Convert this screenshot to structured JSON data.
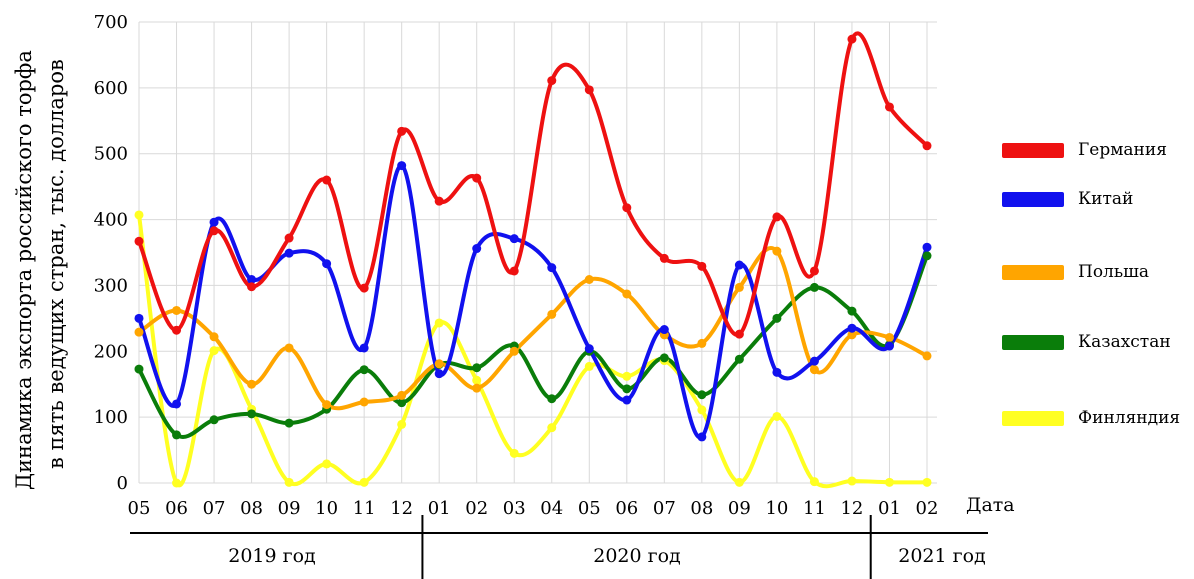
{
  "chart_data": {
    "type": "line",
    "ylabel_lines": [
      "Динамика экспорта российского торфа",
      "в пять ведущих стран, тыс. долларов"
    ],
    "xlabel": "Дата",
    "x": [
      "05",
      "06",
      "07",
      "08",
      "09",
      "10",
      "11",
      "12",
      "01",
      "02",
      "03",
      "04",
      "05",
      "06",
      "07",
      "08",
      "09",
      "10",
      "11",
      "12",
      "01",
      "02"
    ],
    "years": [
      {
        "label": "2019 год",
        "from": 0,
        "to": 7
      },
      {
        "label": "2020 год",
        "from": 8,
        "to": 19
      },
      {
        "label": "2021 год",
        "from": 20,
        "to": 21
      }
    ],
    "ylim": [
      0,
      700
    ],
    "yticks": [
      0,
      100,
      200,
      300,
      400,
      500,
      600,
      700
    ],
    "grid": true,
    "legend_position": "right",
    "series": [
      {
        "name": "Германия",
        "color": "#ee1111",
        "values": [
          367,
          232,
          383,
          298,
          372,
          460,
          296,
          534,
          428,
          463,
          322,
          611,
          597,
          418,
          341,
          329,
          226,
          404,
          322,
          674,
          571,
          512
        ]
      },
      {
        "name": "Китай",
        "color": "#1111ee",
        "values": [
          250,
          120,
          396,
          309,
          349,
          333,
          205,
          482,
          166,
          356,
          371,
          327,
          204,
          126,
          233,
          70,
          331,
          168,
          185,
          235,
          208,
          358
        ]
      },
      {
        "name": "Польша",
        "color": "#ffa500",
        "values": [
          229,
          262,
          222,
          150,
          205,
          119,
          123,
          133,
          181,
          144,
          200,
          256,
          309,
          287,
          225,
          212,
          297,
          352,
          172,
          225,
          221,
          193
        ]
      },
      {
        "name": "Казахстан",
        "color": "#0a7d0a",
        "values": [
          173,
          73,
          96,
          105,
          91,
          112,
          172,
          122,
          180,
          175,
          208,
          128,
          200,
          143,
          190,
          134,
          188,
          250,
          297,
          261,
          210,
          345
        ]
      },
      {
        "name": "Финляндия",
        "color": "#ffff22",
        "values": [
          407,
          0,
          201,
          112,
          1,
          29,
          1,
          89,
          243,
          156,
          45,
          84,
          177,
          162,
          186,
          111,
          1,
          101,
          2,
          3,
          1,
          1
        ]
      }
    ]
  }
}
